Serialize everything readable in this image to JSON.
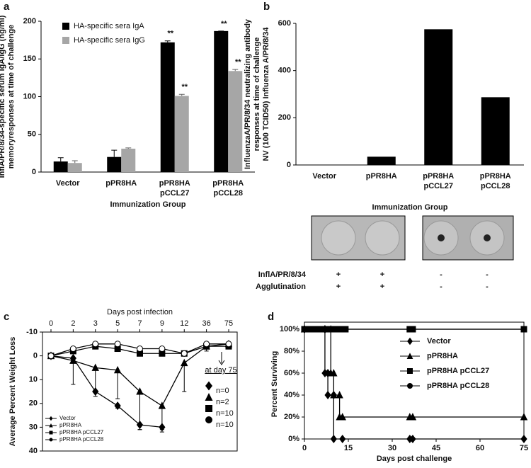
{
  "chart_data": [
    {
      "type": "bar",
      "label": "a",
      "x_label": "Immunization Group",
      "y_label": [
        "InflA/PR/8/34-specific serum IgA/IgG (ng/ml)",
        "memoryresponses at time of challenge"
      ],
      "categories": [
        [
          "Vector"
        ],
        [
          "pPR8HA"
        ],
        [
          "pPR8HA",
          "pCCL27"
        ],
        [
          "pPR8HA",
          "pCCL28"
        ]
      ],
      "series": [
        {
          "name": "HA-specific sera IgA",
          "color": "#000000",
          "values": [
            14,
            20,
            172,
            187
          ],
          "errors": [
            5,
            9,
            2,
            0
          ],
          "annotations": [
            null,
            null,
            "**",
            "**"
          ]
        },
        {
          "name": "HA-specific sera IgG",
          "color": "#a6a6a6",
          "values": [
            12,
            31,
            101,
            134
          ],
          "errors": [
            3,
            1,
            2,
            2
          ],
          "annotations": [
            null,
            null,
            "**",
            "**"
          ]
        }
      ],
      "ylim": [
        0,
        200
      ],
      "yticks": [
        0,
        50,
        100,
        150,
        200
      ],
      "legend": "upper left"
    },
    {
      "type": "bar",
      "label": "b",
      "x_label": "Immunization Group",
      "y_label": [
        "InfluenzaA/PR/8/34 neutralizing antibody",
        "responses at time of challenge",
        "NV (100 TCID50) Influenza A/PR/8/34"
      ],
      "categories": [
        [
          "Vector"
        ],
        [
          "pPR8HA"
        ],
        [
          "pPR8HA",
          "pCCL27"
        ],
        [
          "pPR8HA",
          "pCCL28"
        ]
      ],
      "series": [
        {
          "color": "#000000",
          "values": [
            0,
            35,
            575,
            287
          ]
        }
      ],
      "ylim": [
        0,
        600
      ],
      "yticks": [
        0,
        200,
        400,
        600
      ],
      "table": {
        "rows": [
          {
            "label": "InflA/PR/8/34",
            "cells": [
              "+",
              "+",
              "-",
              "-"
            ]
          },
          {
            "label": "Agglutination",
            "cells": [
              "+",
              "+",
              "-",
              "-"
            ]
          }
        ]
      }
    },
    {
      "type": "line",
      "label": "c",
      "x_label": "Days post infection",
      "y_label": "Average Percent Weight Loss",
      "categories": [
        0,
        2,
        3,
        5,
        7,
        9,
        12,
        36,
        75
      ],
      "ylim": [
        -10,
        40
      ],
      "y_inverted": true,
      "yticks": [
        -10,
        0,
        10,
        20,
        30,
        40
      ],
      "annotation": "at day 75",
      "legend": "lower left",
      "series": [
        {
          "name": "Vector",
          "marker": "diamond",
          "n_label": "n=0",
          "values": [
            0,
            1,
            15,
            21,
            29,
            30,
            null,
            null,
            null
          ],
          "errors": [
            1,
            1,
            2,
            1,
            2,
            2,
            null,
            null,
            null
          ]
        },
        {
          "name": "pPR8HA",
          "marker": "triangle",
          "n_label": "n=2",
          "values": [
            0,
            2,
            5,
            6,
            15,
            21,
            3,
            -4,
            -5
          ],
          "errors": [
            1,
            10,
            10,
            12,
            16,
            10,
            12,
            2,
            2
          ]
        },
        {
          "name": "pPR8HA pCCL27",
          "marker": "square",
          "n_label": "n=10",
          "values": [
            0,
            -2,
            -4,
            -3,
            -1,
            -1,
            -1,
            -4,
            -4
          ],
          "errors": [
            1,
            1,
            1,
            1,
            1,
            1,
            1,
            1,
            1
          ]
        },
        {
          "name": "pPR8HA pCCL28",
          "marker": "circle",
          "n_label": "n=10",
          "values": [
            0,
            -3,
            -5,
            -5,
            -3,
            -3,
            -1,
            -5,
            -5
          ],
          "errors": [
            1,
            1,
            1,
            1,
            1,
            1,
            1,
            1,
            1
          ]
        }
      ]
    },
    {
      "type": "line",
      "label": "d",
      "x_label": "Days post challenge",
      "y_label": "Percent Surviving",
      "xlim": [
        0,
        75
      ],
      "xticks": [
        0,
        15,
        30,
        45,
        60,
        75
      ],
      "ylim": [
        0,
        100
      ],
      "yticks": [
        {
          "value": 0,
          "label": "0%"
        },
        {
          "value": 20,
          "label": "20%"
        },
        {
          "value": 40,
          "label": "40%"
        },
        {
          "value": 60,
          "label": "60%"
        },
        {
          "value": 80,
          "label": "80%"
        },
        {
          "value": 100,
          "label": "100%"
        }
      ],
      "legend": "upper right",
      "series": [
        {
          "name": "Vector",
          "marker": "diamond",
          "x": [
            0,
            7,
            7,
            8,
            8,
            10,
            10,
            13,
            36,
            37,
            75
          ],
          "values": [
            100,
            100,
            60,
            60,
            40,
            40,
            0,
            0,
            0,
            0,
            0
          ]
        },
        {
          "name": "pPR8HA",
          "marker": "triangle",
          "x": [
            0,
            9,
            9,
            10,
            10,
            12,
            12,
            13,
            36,
            37,
            75
          ],
          "values": [
            100,
            100,
            60,
            60,
            40,
            40,
            20,
            20,
            20,
            20,
            20
          ]
        },
        {
          "name": "pPR8HA pCCL27",
          "marker": "square",
          "x": [
            0,
            2,
            4,
            6,
            8,
            10,
            12,
            14,
            36,
            37,
            75
          ],
          "values": [
            100,
            100,
            100,
            100,
            100,
            100,
            100,
            100,
            100,
            100,
            100
          ]
        },
        {
          "name": "pPR8HA pCCL28",
          "marker": "circle",
          "x": [
            0,
            2,
            4,
            6,
            8,
            10,
            12,
            14,
            36,
            37,
            75
          ],
          "values": [
            100,
            100,
            100,
            100,
            100,
            100,
            100,
            100,
            100,
            100,
            100
          ]
        }
      ]
    }
  ]
}
